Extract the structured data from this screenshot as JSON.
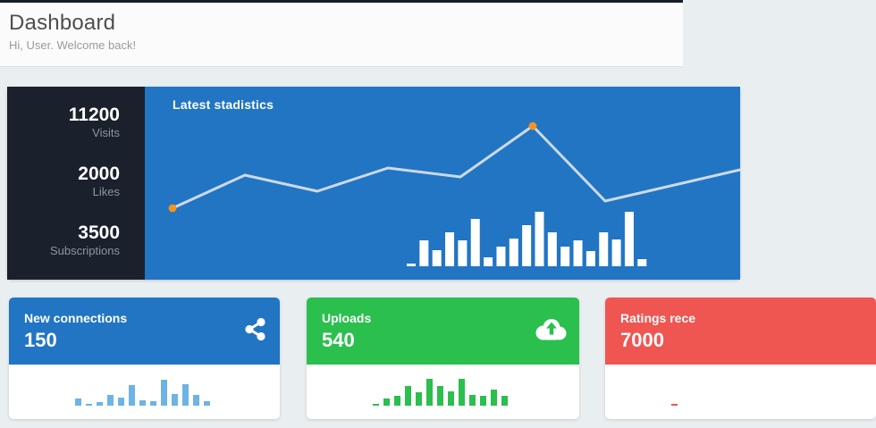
{
  "page": {
    "title": "Dashboard",
    "subtitle": "Hi, User. Welcome back!"
  },
  "stats_panel": {
    "title": "Latest stadistics",
    "stats": [
      {
        "value": "11200",
        "label": "Visits"
      },
      {
        "value": "2000",
        "label": "Likes"
      },
      {
        "value": "3500",
        "label": "Subscriptions"
      }
    ]
  },
  "cards": [
    {
      "title": "New connections",
      "value": "150",
      "icon": "share-icon",
      "accent": "#2175c3",
      "spark_color": "#6cb3e8"
    },
    {
      "title": "Uploads",
      "value": "540",
      "icon": "cloud-upload-icon",
      "accent": "#2bbf4e",
      "spark_color": "#2bbf4e"
    },
    {
      "title": "Ratings rece",
      "value": "7000",
      "icon": "",
      "accent": "#ef5652",
      "spark_color": "#ef5652"
    }
  ],
  "chart_data": [
    {
      "type": "line",
      "title": "Latest stadistics",
      "x": [
        31,
        112,
        193,
        272,
        353,
        434,
        515,
        666
      ],
      "y": [
        136,
        99,
        117,
        91,
        101,
        44,
        128,
        93
      ],
      "y_axis": "pixels-from-top (no labeled axes)",
      "highlight_point_indices": [
        0,
        5
      ],
      "line_color": "#dce2e9",
      "dot_color": "#f7941d",
      "legend": "off",
      "grid": "off"
    },
    {
      "type": "bar",
      "values": [
        3,
        29,
        18,
        38,
        29,
        53,
        10,
        22,
        31,
        46,
        61,
        38,
        22,
        29,
        17,
        38,
        30,
        61,
        8
      ],
      "bar_color": "#ffffff",
      "legend": "off",
      "grid": "off"
    },
    {
      "type": "bar",
      "title": "New connections",
      "values": [
        8,
        2,
        4,
        12,
        9,
        23,
        6,
        5,
        29,
        13,
        24,
        12,
        5
      ],
      "bar_color": "#6cb3e8"
    },
    {
      "type": "bar",
      "title": "Uploads",
      "values": [
        2,
        8,
        11,
        22,
        15,
        30,
        22,
        16,
        30,
        12,
        11,
        18,
        11
      ],
      "bar_color": "#2bbf4e"
    },
    {
      "type": "bar",
      "title": "Ratings rece",
      "values": [
        2
      ],
      "bar_color": "#ef5652"
    }
  ],
  "colors": {
    "topbar": "#191f29",
    "page_bg": "#e9eef1",
    "header_bg": "#fbfbfc",
    "panel_dark": "#1a212c",
    "panel_blue": "#2175c3",
    "stat_label": "#8b96a1",
    "title_text": "#4e4e4e",
    "subtitle_text": "#9b9b9b",
    "chart_line": "#dce2e9",
    "chart_dot": "#f7941d"
  }
}
